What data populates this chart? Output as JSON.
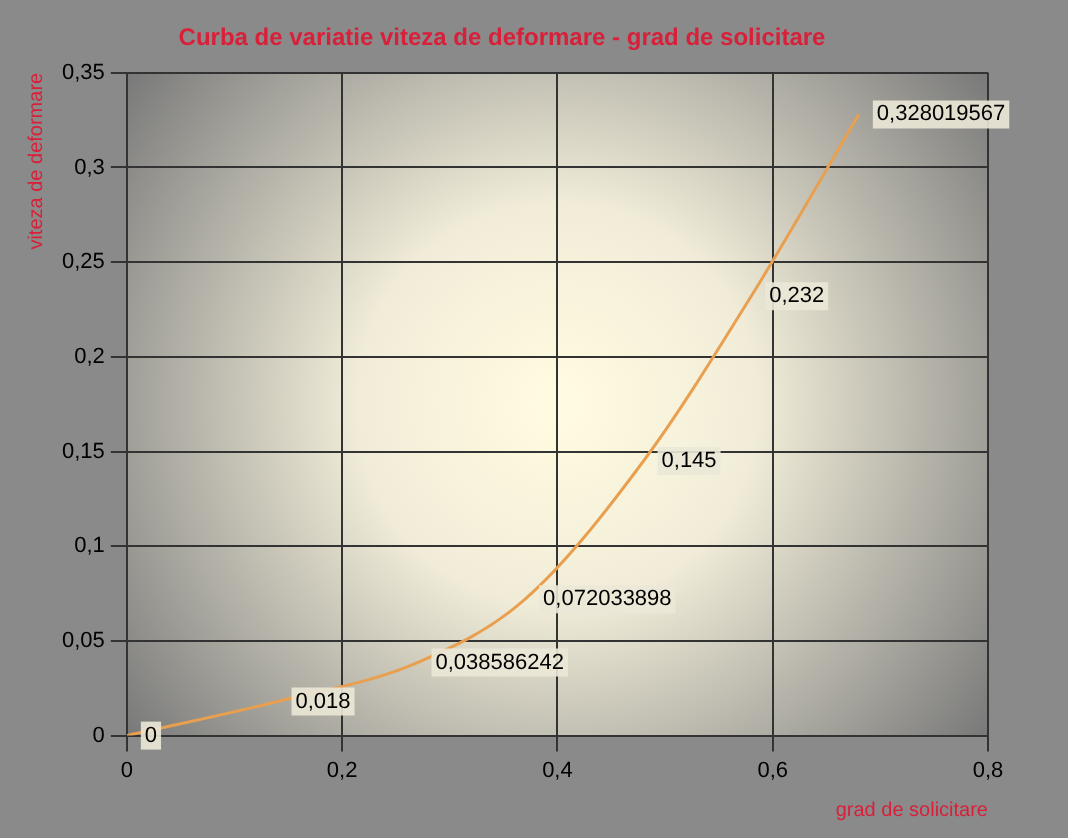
{
  "chart_data": {
    "type": "line",
    "title": "Curba de variatie viteza de deformare - grad de solicitare",
    "xlabel": "grad de solicitare",
    "ylabel": "viteza de deformare",
    "x": [
      0,
      0.14,
      0.27,
      0.37,
      0.48,
      0.58,
      0.68
    ],
    "series": [
      {
        "color": "#e8a050",
        "values": [
          0,
          0.018,
          0.038586242,
          0.072033898,
          0.145,
          0.232,
          0.328019567
        ],
        "value_labels": [
          "0",
          "0,018",
          "0,038586242",
          "0,072033898",
          "0,145",
          "0,232",
          "0,328019567"
        ]
      }
    ],
    "xlim": [
      0,
      0.8
    ],
    "xticks": [
      0,
      {
        "value": 0.2,
        "label": "0,2"
      },
      {
        "value": 0.4,
        "label": "0,4"
      },
      {
        "value": 0.6,
        "label": "0,6"
      },
      {
        "value": 0.8,
        "label": "0,8"
      }
    ],
    "ylim": [
      0,
      0.35
    ],
    "yticks": [
      0,
      {
        "value": 0.05,
        "label": "0,05"
      },
      {
        "value": 0.1,
        "label": "0,1"
      },
      {
        "value": 0.15,
        "label": "0,15"
      },
      {
        "value": 0.2,
        "label": "0,2"
      },
      {
        "value": 0.25,
        "label": "0,25"
      },
      {
        "value": 0.3,
        "label": "0,3"
      },
      {
        "value": 0.35,
        "label": "0,35"
      }
    ],
    "grid": true,
    "legend": false,
    "line_style": "solid"
  }
}
